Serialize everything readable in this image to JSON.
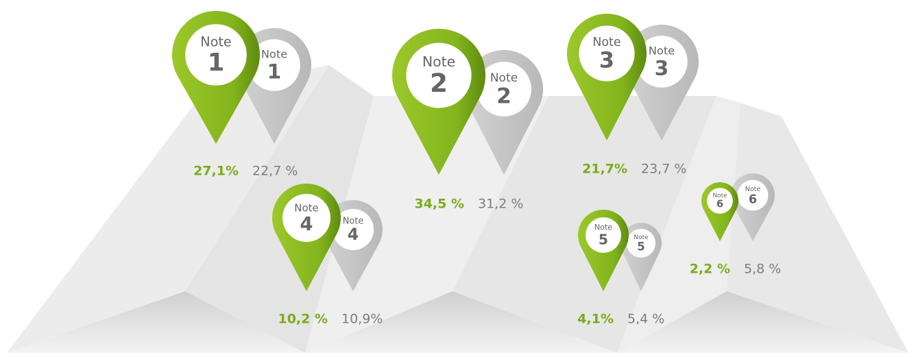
{
  "pins": [
    {
      "note": "Note",
      "grade": "1",
      "green_note": "Note",
      "green_grade": "1",
      "green_value": "27,1%",
      "gray_value": "22,7 %"
    },
    {
      "note": "Note",
      "grade": "2",
      "green_note": "Note",
      "green_grade": "2",
      "green_value": "34,5 %",
      "gray_value": "31,2 %"
    },
    {
      "note": "Note",
      "grade": "3",
      "green_note": "Note",
      "green_grade": "3",
      "green_value": "21,7%",
      "gray_value": "23,7 %"
    },
    {
      "note": "Note",
      "grade": "4",
      "green_note": "Note",
      "green_grade": "4",
      "green_value": "10,2 %",
      "gray_value": "10,9%"
    },
    {
      "note": "Note",
      "grade": "5",
      "green_note": "Note",
      "green_grade": "5",
      "green_value": "4,1%",
      "gray_value": "5,4 %"
    },
    {
      "note": "Note",
      "grade": "6",
      "green_note": "Note",
      "green_grade": "6",
      "green_value": "2,2 %",
      "gray_value": "5,8 %"
    }
  ]
}
